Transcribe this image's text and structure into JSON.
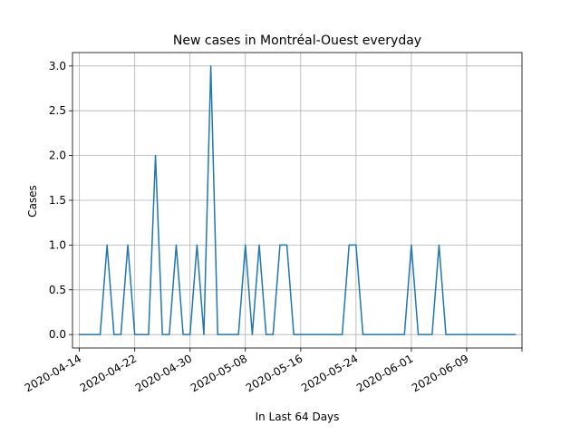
{
  "chart_data": {
    "type": "line",
    "title": "New cases in Montréal-Ouest everyday",
    "xlabel": "In Last 64 Days",
    "ylabel": "Cases",
    "x": [
      "2020-04-14",
      "2020-04-15",
      "2020-04-16",
      "2020-04-17",
      "2020-04-18",
      "2020-04-19",
      "2020-04-20",
      "2020-04-21",
      "2020-04-22",
      "2020-04-23",
      "2020-04-24",
      "2020-04-25",
      "2020-04-26",
      "2020-04-27",
      "2020-04-28",
      "2020-04-29",
      "2020-04-30",
      "2020-05-01",
      "2020-05-02",
      "2020-05-03",
      "2020-05-04",
      "2020-05-05",
      "2020-05-06",
      "2020-05-07",
      "2020-05-08",
      "2020-05-09",
      "2020-05-10",
      "2020-05-11",
      "2020-05-12",
      "2020-05-13",
      "2020-05-14",
      "2020-05-15",
      "2020-05-16",
      "2020-05-17",
      "2020-05-18",
      "2020-05-19",
      "2020-05-20",
      "2020-05-21",
      "2020-05-22",
      "2020-05-23",
      "2020-05-24",
      "2020-05-25",
      "2020-05-26",
      "2020-05-27",
      "2020-05-28",
      "2020-05-29",
      "2020-05-30",
      "2020-05-31",
      "2020-06-01",
      "2020-06-02",
      "2020-06-03",
      "2020-06-04",
      "2020-06-05",
      "2020-06-06",
      "2020-06-07",
      "2020-06-08",
      "2020-06-09",
      "2020-06-10",
      "2020-06-11",
      "2020-06-12",
      "2020-06-13",
      "2020-06-14",
      "2020-06-15",
      "2020-06-16"
    ],
    "series": [
      {
        "values": [
          0,
          0,
          0,
          0,
          1,
          0,
          0,
          1,
          0,
          0,
          0,
          2,
          0,
          0,
          1,
          0,
          0,
          1,
          0,
          3,
          0,
          0,
          0,
          0,
          1,
          0,
          1,
          0,
          0,
          1,
          1,
          0,
          0,
          0,
          0,
          0,
          0,
          0,
          0,
          1,
          1,
          0,
          0,
          0,
          0,
          0,
          0,
          0,
          1,
          0,
          0,
          0,
          1,
          0,
          0,
          0,
          0,
          0,
          0,
          0,
          0,
          0,
          0,
          0
        ]
      }
    ],
    "x_ticks": [
      "2020-04-14",
      "2020-04-22",
      "2020-04-30",
      "2020-05-08",
      "2020-05-16",
      "2020-05-24",
      "2020-06-01",
      "2020-06-09"
    ],
    "y_ticks": [
      "0.0",
      "0.5",
      "1.0",
      "1.5",
      "2.0",
      "2.5",
      "3.0"
    ],
    "xlim": [
      "2020-04-13",
      "2020-06-17"
    ],
    "ylim": [
      -0.15,
      3.15
    ],
    "grid": true,
    "colors": {
      "line": "#1f77b4",
      "grid": "#b0b0b0",
      "axis": "#000000"
    }
  }
}
